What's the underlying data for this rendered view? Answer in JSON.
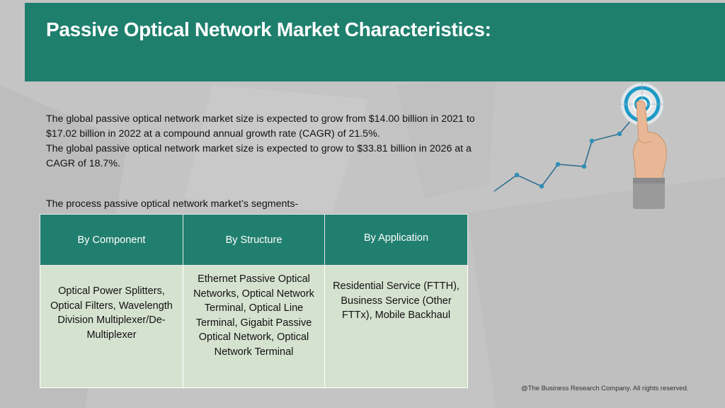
{
  "title": "Passive Optical Network Market Characteristics:",
  "paragraph": [
    "The global passive optical network market size is expected to grow from $14.00 billion in 2021 to $17.02 billion in 2022 at a compound annual growth rate (CAGR) of 21.5%.",
    "The global passive optical network market size is expected to grow to $33.81 billion in 2026 at a CAGR of 18.7%."
  ],
  "segments_label": "The process passive optical network market’s segments-",
  "table": {
    "headers": [
      "By Component",
      "By Structure",
      "By Application"
    ],
    "cells": [
      "Optical Power Splitters, Optical Filters, Wavelength Division Multiplexer/De-Multiplexer",
      "Ethernet Passive Optical Networks, Optical Network Terminal, Optical Line Terminal, Gigabit Passive Optical Network, Optical Network Terminal",
      "Residential Service (FTTH), Business Service (Other FTTx), Mobile Backhaul"
    ]
  },
  "footer": "@The Business Research Company. All rights reserved.",
  "colors": {
    "header": "#1f7f6d",
    "table_header": "#217f6f",
    "table_body": "#d6e2d0",
    "background": "#c4c4c4",
    "graph_line": "#2f6f8f"
  },
  "icons": [
    "growth-graph-icon",
    "target-icon",
    "pointing-hand-icon"
  ]
}
